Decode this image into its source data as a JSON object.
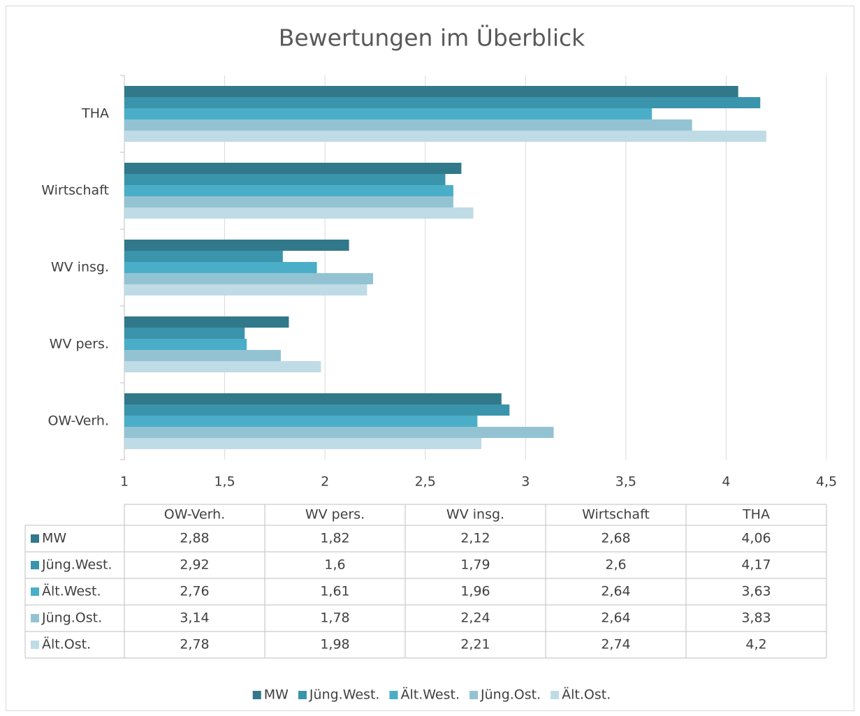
{
  "chart_data": {
    "type": "bar",
    "orientation": "horizontal",
    "title": "Bewertungen im Überblick",
    "categories": [
      "OW-Verh.",
      "WV pers.",
      "WV insg.",
      "Wirtschaft",
      "THA"
    ],
    "series": [
      {
        "name": "MW",
        "color": "#31788a",
        "values": [
          2.88,
          1.82,
          2.12,
          2.68,
          4.06
        ],
        "value_labels": [
          "2,88",
          "1,82",
          "2,12",
          "2,68",
          "4,06"
        ]
      },
      {
        "name": "Jüng.West.",
        "color": "#3a94ab",
        "values": [
          2.92,
          1.6,
          1.79,
          2.6,
          4.17
        ],
        "value_labels": [
          "2,92",
          "1,6",
          "1,79",
          "2,6",
          "4,17"
        ]
      },
      {
        "name": "Ält.West.",
        "color": "#4aaec8",
        "values": [
          2.76,
          1.61,
          1.96,
          2.64,
          3.63
        ],
        "value_labels": [
          "2,76",
          "1,61",
          "1,96",
          "2,64",
          "3,63"
        ]
      },
      {
        "name": "Jüng.Ost.",
        "color": "#93c3d3",
        "values": [
          3.14,
          1.78,
          2.24,
          2.64,
          3.83
        ],
        "value_labels": [
          "3,14",
          "1,78",
          "2,24",
          "2,64",
          "3,83"
        ]
      },
      {
        "name": "Ält.Ost.",
        "color": "#bfdbe6",
        "values": [
          2.78,
          1.98,
          2.21,
          2.74,
          4.2
        ],
        "value_labels": [
          "2,78",
          "1,98",
          "2,21",
          "2,74",
          "4,2"
        ]
      }
    ],
    "xlim": [
      1,
      4.5
    ],
    "xticks": [
      1,
      {
        "value": 1.5,
        "label": "1,5"
      },
      2,
      {
        "value": 2.5,
        "label": "2,5"
      },
      3,
      {
        "value": 3.5,
        "label": "3,5"
      },
      4,
      {
        "value": 4.5,
        "label": "4,5"
      }
    ],
    "grid": true,
    "data_table": true,
    "legend": "bottom"
  }
}
